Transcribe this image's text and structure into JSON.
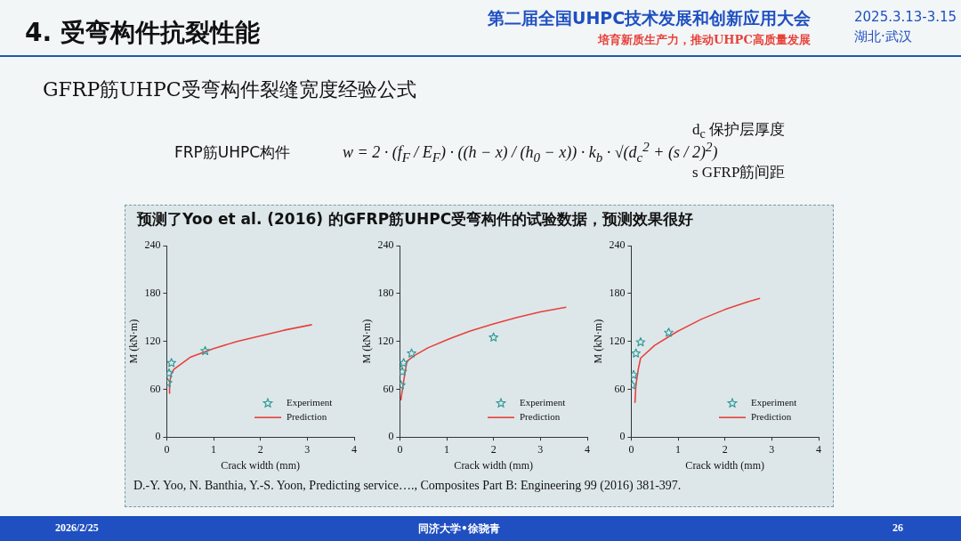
{
  "chart_data": [
    {
      "type": "line",
      "title": "4. 受弯构件抗裂性能",
      "annotations": [
        "第二届全国UHPC技术发展和创新应用大会",
        "培育新质生产力，推动UHPC高质量发展",
        "2025.3.13-3.15",
        "湖北·武汉",
        "GFRP筋UHPC受弯构件裂缝宽度经验公式",
        "FRP筋UHPC构件",
        "w = 2 · (f$_{F}$ / E$_{F}$) · ((h − x) / (h$_{0}$ − x)) · k$_{b}$ · √(d$_{c}$$^{2}$ + (s / 2)$^{2}$)",
        "d$_{c}$  保护层厚度",
        "s   GFRP筋间距",
        "预测了Yoo et al. (2016) 的GFRP筋UHPC受弯构件的试验数据，预测效果很好",
        "D.-Y. Yoo, N. Banthia, Y.-S. Yoon, Predicting service…., Composites Part B: Engineering 99 (2016) 381-397.",
        "2026/2/25",
        "同济大学•徐骁青",
        "26"
      ],
      "xlabel": "Crack width (mm)",
      "ylabel": "M (kN·m)",
      "xlim": [
        0,
        4
      ],
      "xticks": [
        0,
        1,
        2,
        3,
        4
      ],
      "ylim": [
        0,
        240
      ],
      "yticks": [
        0,
        60,
        120,
        180,
        240
      ],
      "legend": "bottom right",
      "series": [
        {
          "name": "Experiment",
          "type": "scatter",
          "marker": "star",
          "color": "#339999",
          "x": [
            0.02,
            0.05,
            0.1,
            0.82
          ],
          "values": [
            68,
            80,
            93,
            108
          ]
        },
        {
          "name": "Prediction",
          "type": "line",
          "marker": "none",
          "color": "#e8413a",
          "x": [
            0.05,
            0.06,
            0.1,
            0.15,
            0.5,
            1,
            1.5,
            2,
            2.5,
            3.1
          ],
          "values": [
            55,
            68,
            80,
            85,
            100,
            111,
            120,
            127,
            134,
            141
          ]
        }
      ]
    },
    {
      "type": "line",
      "xlabel": "Crack width (mm)",
      "ylabel": "M (kN·m)",
      "xlim": [
        0,
        4
      ],
      "xticks": [
        0,
        1,
        2,
        3,
        4
      ],
      "ylim": [
        0,
        240
      ],
      "yticks": [
        0,
        60,
        120,
        180,
        240
      ],
      "legend": "bottom right",
      "series": [
        {
          "name": "Experiment",
          "type": "scatter",
          "marker": "star",
          "color": "#339999",
          "x": [
            0.02,
            0.05,
            0.08,
            0.25,
            2.0
          ],
          "values": [
            65,
            82,
            93,
            105,
            125
          ]
        },
        {
          "name": "Prediction",
          "type": "line",
          "marker": "none",
          "color": "#e8413a",
          "x": [
            0.02,
            0.08,
            0.15,
            0.3,
            0.6,
            1,
            1.5,
            2,
            2.5,
            3,
            3.55
          ],
          "values": [
            46,
            70,
            95,
            102,
            112,
            122,
            133,
            142,
            150,
            157,
            163
          ]
        }
      ]
    },
    {
      "type": "line",
      "xlabel": "Crack width (mm)",
      "ylabel": "M (kN·m)",
      "xlim": [
        0,
        4
      ],
      "xticks": [
        0,
        1,
        2,
        3,
        4
      ],
      "ylim": [
        0,
        240
      ],
      "yticks": [
        0,
        60,
        120,
        180,
        240
      ],
      "legend": "bottom right",
      "series": [
        {
          "name": "Experiment",
          "type": "scatter",
          "marker": "star",
          "color": "#339999",
          "x": [
            0.02,
            0.05,
            0.1,
            0.2,
            0.8
          ],
          "values": [
            65,
            78,
            105,
            119,
            131
          ]
        },
        {
          "name": "Prediction",
          "type": "line",
          "marker": "none",
          "color": "#e8413a",
          "x": [
            0.08,
            0.1,
            0.15,
            0.2,
            0.5,
            1,
            1.5,
            2,
            2.5,
            2.75
          ],
          "values": [
            43,
            65,
            85,
            99,
            115,
            133,
            148,
            160,
            170,
            174
          ]
        }
      ]
    }
  ]
}
